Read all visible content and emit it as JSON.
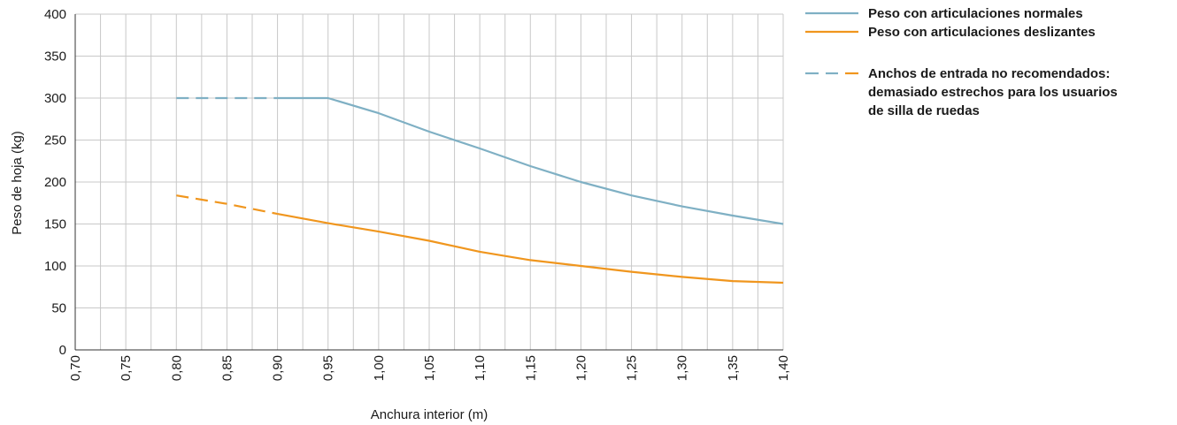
{
  "chart_data": {
    "type": "line",
    "xlabel": "Anchura interior (m)",
    "ylabel": "Peso de hoja (kg)",
    "xlim": [
      0.7,
      1.4
    ],
    "ylim": [
      0,
      400
    ],
    "x_ticks": [
      "0,70",
      "0,75",
      "0,80",
      "0,85",
      "0,90",
      "0,95",
      "1,00",
      "1,05",
      "1,10",
      "1,15",
      "1,20",
      "1,25",
      "1,30",
      "1,35",
      "1,40"
    ],
    "y_ticks": [
      "0",
      "50",
      "100",
      "150",
      "200",
      "250",
      "300",
      "350",
      "400"
    ],
    "grid": true,
    "legend_position": "top-right",
    "series": [
      {
        "name": "Peso con articulaciones normales",
        "color": "#7fb0c4",
        "x": [
          0.8,
          0.85,
          0.9,
          0.95,
          1.0,
          1.05,
          1.1,
          1.15,
          1.2,
          1.25,
          1.3,
          1.35,
          1.4
        ],
        "y": [
          300,
          300,
          300,
          300,
          282,
          260,
          240,
          219,
          200,
          184,
          171,
          160,
          150
        ],
        "dashed_until_x": 0.9
      },
      {
        "name": "Peso con articulaciones deslizantes",
        "color": "#f0961e",
        "x": [
          0.8,
          0.85,
          0.9,
          0.95,
          1.0,
          1.05,
          1.1,
          1.15,
          1.2,
          1.25,
          1.3,
          1.35,
          1.4
        ],
        "y": [
          184,
          174,
          162,
          151,
          141,
          130,
          117,
          107,
          100,
          93,
          87,
          82,
          80
        ],
        "dashed_until_x": 0.9
      }
    ],
    "legend_note": {
      "lines": [
        "Anchos de entrada no recomendados:",
        "demasiado estrechos para los usuarios",
        "de silla de ruedas"
      ],
      "color": "#7fb0c4",
      "color2": "#f0961e"
    }
  }
}
